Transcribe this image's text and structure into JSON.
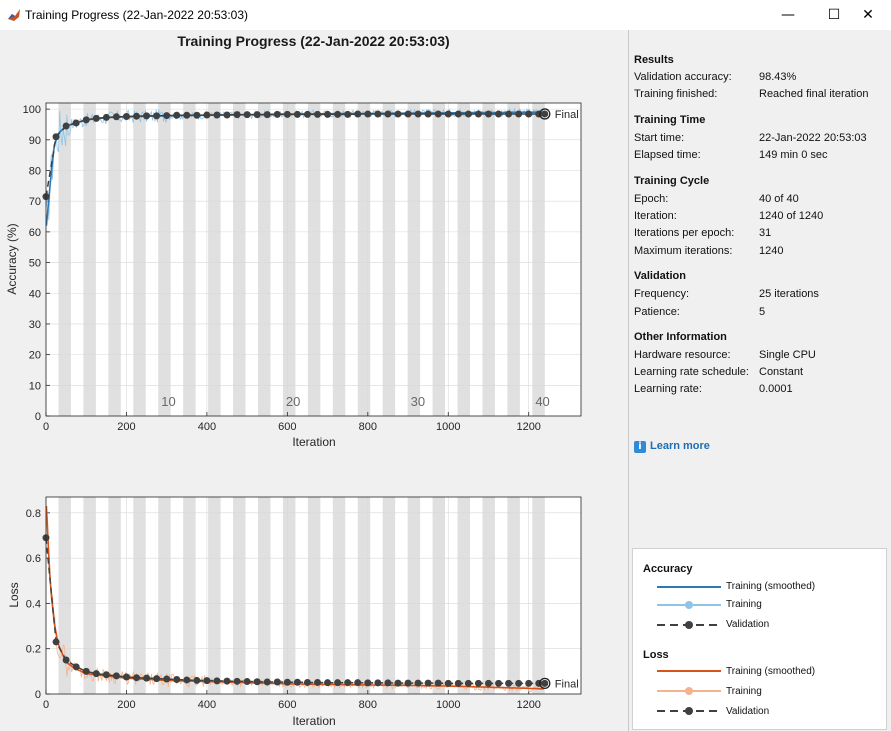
{
  "window": {
    "title": "Training Progress (22-Jan-2022 20:53:03)",
    "min_glyph": "—",
    "max_glyph": "☐",
    "close_glyph": "✕",
    "icon": "matlab-icon"
  },
  "figure": {
    "title": "Training Progress (22-Jan-2022 20:53:03)",
    "final_label": "Final"
  },
  "accuracy_plot": {
    "ylabel": "Accuracy (%)",
    "xlabel": "Iteration",
    "epoch_labels": [
      "10",
      "20",
      "30",
      "40"
    ]
  },
  "loss_plot": {
    "ylabel": "Loss",
    "xlabel": "Iteration"
  },
  "panel": {
    "results": {
      "title": "Results",
      "validation_accuracy_label": "Validation accuracy:",
      "validation_accuracy": "98.43%",
      "training_finished_label": "Training finished:",
      "training_finished": "Reached final iteration"
    },
    "time": {
      "title": "Training Time",
      "start_label": "Start time:",
      "start": "22-Jan-2022 20:53:03",
      "elapsed_label": "Elapsed time:",
      "elapsed": "149 min 0 sec"
    },
    "cycle": {
      "title": "Training Cycle",
      "epoch_label": "Epoch:",
      "epoch": "40 of 40",
      "iteration_label": "Iteration:",
      "iteration": "1240 of 1240",
      "ipe_label": "Iterations per epoch:",
      "ipe": "31",
      "max_label": "Maximum iterations:",
      "max": "1240"
    },
    "validation": {
      "title": "Validation",
      "frequency_label": "Frequency:",
      "frequency": "25 iterations",
      "patience_label": "Patience:",
      "patience": "5"
    },
    "other": {
      "title": "Other Information",
      "hardware_label": "Hardware resource:",
      "hardware": "Single CPU",
      "schedule_label": "Learning rate schedule:",
      "schedule": "Constant",
      "lr_label": "Learning rate:",
      "lr": "0.0001"
    },
    "learn_more": "Learn more"
  },
  "legend": {
    "accuracy_title": "Accuracy",
    "loss_title": "Loss",
    "training_smoothed": "Training (smoothed)",
    "training": "Training",
    "validation": "Validation"
  },
  "colors": {
    "acc_smoothed": "#2a7ab8",
    "acc_raw": "#8fc4e6",
    "loss_smoothed": "#d95319",
    "loss_raw": "#f2b48f",
    "validation": "#404040",
    "epoch_band": "#e0e0e0"
  },
  "chart_data": [
    {
      "type": "line",
      "title": "",
      "xlabel": "Iteration",
      "ylabel": "Accuracy (%)",
      "xlim": [
        0,
        1330
      ],
      "ylim": [
        0,
        102
      ],
      "xticks": [
        0,
        200,
        400,
        600,
        800,
        1000,
        1200
      ],
      "yticks": [
        0,
        10,
        20,
        30,
        40,
        50,
        60,
        70,
        80,
        90,
        100
      ],
      "iterations_per_epoch": 31,
      "epochs": 40,
      "series": [
        {
          "name": "Training (smoothed)",
          "x": [
            1,
            10,
            20,
            30,
            50,
            75,
            100,
            150,
            200,
            300,
            400,
            500,
            600,
            700,
            800,
            900,
            1000,
            1100,
            1200,
            1240
          ],
          "values": [
            62,
            75,
            88,
            92,
            94.5,
            95.5,
            96.5,
            97.2,
            97.5,
            97.8,
            98,
            98.2,
            98.4,
            98.5,
            98.6,
            98.7,
            98.8,
            98.9,
            99,
            99
          ]
        },
        {
          "name": "Validation",
          "x": [
            0,
            25,
            50,
            75,
            100,
            125,
            150,
            175,
            200,
            225,
            250,
            275,
            300,
            325,
            350,
            375,
            400,
            425,
            450,
            475,
            500,
            525,
            550,
            575,
            600,
            625,
            650,
            675,
            700,
            725,
            750,
            775,
            800,
            825,
            850,
            875,
            900,
            925,
            950,
            975,
            1000,
            1025,
            1050,
            1075,
            1100,
            1125,
            1150,
            1175,
            1200,
            1225,
            1240
          ],
          "values": [
            71.5,
            91,
            94.5,
            95.5,
            96.5,
            97,
            97.3,
            97.5,
            97.6,
            97.7,
            97.8,
            97.8,
            97.9,
            98,
            98,
            98,
            98.1,
            98.1,
            98.1,
            98.2,
            98.2,
            98.2,
            98.2,
            98.3,
            98.3,
            98.3,
            98.3,
            98.3,
            98.3,
            98.3,
            98.3,
            98.4,
            98.4,
            98.4,
            98.4,
            98.4,
            98.4,
            98.4,
            98.4,
            98.4,
            98.4,
            98.4,
            98.4,
            98.4,
            98.4,
            98.4,
            98.4,
            98.4,
            98.4,
            98.4,
            98.43
          ]
        }
      ]
    },
    {
      "type": "line",
      "title": "",
      "xlabel": "Iteration",
      "ylabel": "Loss",
      "xlim": [
        0,
        1330
      ],
      "ylim": [
        0,
        0.87
      ],
      "xticks": [
        0,
        200,
        400,
        600,
        800,
        1000,
        1200
      ],
      "yticks": [
        0,
        0.2,
        0.4,
        0.6,
        0.8
      ],
      "series": [
        {
          "name": "Training (smoothed)",
          "x": [
            1,
            10,
            20,
            30,
            50,
            75,
            100,
            150,
            200,
            300,
            400,
            500,
            600,
            700,
            800,
            900,
            1000,
            1100,
            1200,
            1240
          ],
          "values": [
            0.83,
            0.5,
            0.32,
            0.22,
            0.14,
            0.11,
            0.09,
            0.08,
            0.07,
            0.06,
            0.055,
            0.05,
            0.045,
            0.042,
            0.04,
            0.038,
            0.035,
            0.03,
            0.025,
            0.022
          ]
        },
        {
          "name": "Validation",
          "x": [
            0,
            25,
            50,
            75,
            100,
            125,
            150,
            175,
            200,
            225,
            250,
            275,
            300,
            325,
            350,
            375,
            400,
            425,
            450,
            475,
            500,
            525,
            550,
            575,
            600,
            625,
            650,
            675,
            700,
            725,
            750,
            775,
            800,
            825,
            850,
            875,
            900,
            925,
            950,
            975,
            1000,
            1025,
            1050,
            1075,
            1100,
            1125,
            1150,
            1175,
            1200,
            1225,
            1240
          ],
          "values": [
            0.69,
            0.23,
            0.15,
            0.12,
            0.1,
            0.09,
            0.085,
            0.08,
            0.075,
            0.072,
            0.07,
            0.068,
            0.066,
            0.064,
            0.062,
            0.06,
            0.059,
            0.058,
            0.057,
            0.056,
            0.055,
            0.054,
            0.053,
            0.053,
            0.052,
            0.052,
            0.051,
            0.051,
            0.05,
            0.05,
            0.05,
            0.05,
            0.049,
            0.049,
            0.049,
            0.048,
            0.048,
            0.048,
            0.048,
            0.048,
            0.047,
            0.047,
            0.047,
            0.047,
            0.047,
            0.047,
            0.047,
            0.047,
            0.047,
            0.047,
            0.047
          ]
        }
      ]
    }
  ]
}
